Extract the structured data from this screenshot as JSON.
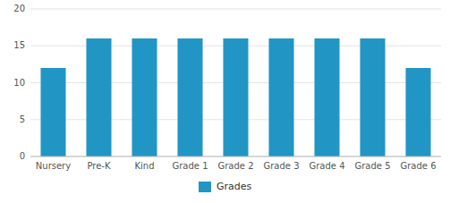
{
  "chart_data": {
    "type": "bar",
    "categories": [
      "Nursery",
      "Pre-K",
      "Kind",
      "Grade 1",
      "Grade 2",
      "Grade 3",
      "Grade 4",
      "Grade 5",
      "Grade 6"
    ],
    "series": [
      {
        "name": "Grades",
        "color": "#2196C4",
        "values": [
          12,
          16,
          16,
          16,
          16,
          16,
          16,
          16,
          12
        ]
      }
    ],
    "ylim": [
      0,
      20
    ],
    "yticks": [
      0,
      5,
      10,
      15,
      20
    ],
    "grid": true,
    "legend": "bottom"
  }
}
